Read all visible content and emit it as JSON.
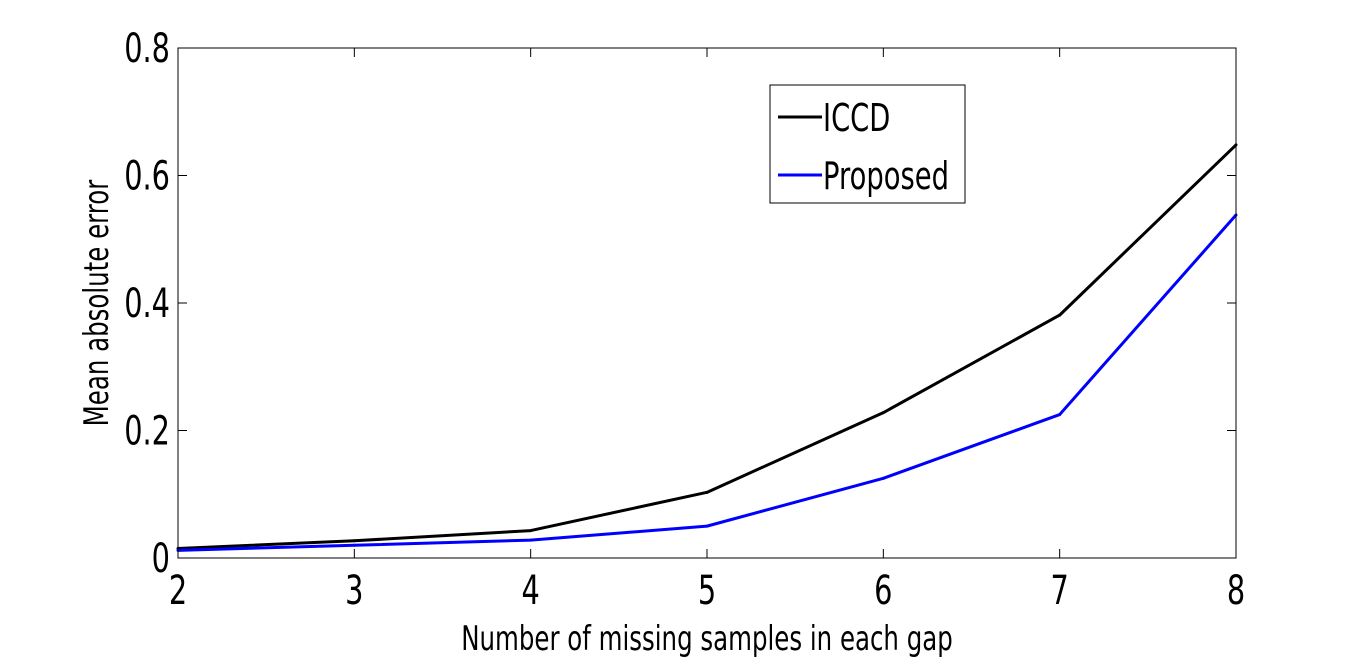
{
  "chart_data": {
    "type": "line",
    "title": "",
    "xlabel": "Number of missing samples in each gap",
    "ylabel": "Mean absolute error",
    "x": [
      2,
      3,
      4,
      5,
      6,
      7,
      8
    ],
    "xlim": [
      2,
      8
    ],
    "ylim": [
      0,
      0.8
    ],
    "xticks": [
      2,
      3,
      4,
      5,
      6,
      7,
      8
    ],
    "yticks": [
      0,
      0.2,
      0.4,
      0.6,
      0.8
    ],
    "xtick_labels": [
      "2",
      "3",
      "4",
      "5",
      "6",
      "7",
      "8"
    ],
    "ytick_labels": [
      "0",
      "0.2",
      "0.4",
      "0.6",
      "0.8"
    ],
    "grid": false,
    "legend_position": "top-right",
    "series": [
      {
        "name": "ICCD",
        "color": "#000000",
        "values": [
          0.015,
          0.027,
          0.043,
          0.103,
          0.228,
          0.381,
          0.648
        ]
      },
      {
        "name": "Proposed",
        "color": "#0000ff",
        "values": [
          0.012,
          0.02,
          0.028,
          0.05,
          0.125,
          0.225,
          0.538
        ]
      }
    ]
  }
}
